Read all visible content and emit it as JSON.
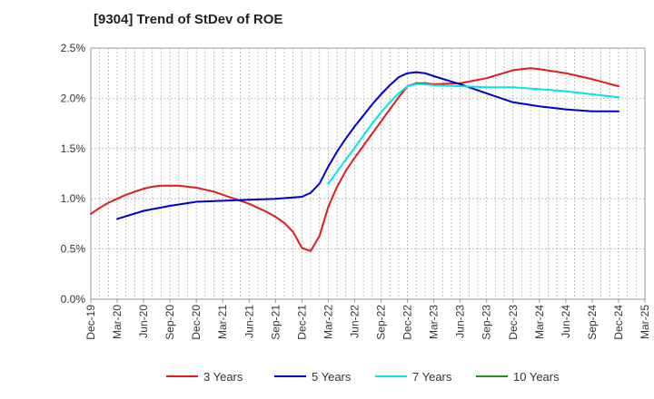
{
  "chart_data": {
    "type": "line",
    "title": "[9304]  Trend of StDev of ROE",
    "xlabel": "",
    "ylabel": "",
    "x_ticks": [
      "Dec-19",
      "Mar-20",
      "Jun-20",
      "Sep-20",
      "Dec-20",
      "Mar-21",
      "Jun-21",
      "Sep-21",
      "Dec-21",
      "Mar-22",
      "Jun-22",
      "Sep-22",
      "Dec-22",
      "Mar-23",
      "Jun-23",
      "Sep-23",
      "Dec-23",
      "Mar-24",
      "Jun-24",
      "Sep-24",
      "Dec-24",
      "Mar-25"
    ],
    "y_ticks": [
      "0.0%",
      "0.5%",
      "1.0%",
      "1.5%",
      "2.0%",
      "2.5%"
    ],
    "ylim": [
      0,
      2.5
    ],
    "y_unit": "%",
    "grid": true,
    "legend_position": "bottom",
    "series": [
      {
        "name": "3 Years",
        "color": "#e31a1c",
        "x": [
          "2019-12",
          "2020-01",
          "2020-02",
          "2020-03",
          "2020-04",
          "2020-05",
          "2020-06",
          "2020-07",
          "2020-08",
          "2020-09",
          "2020-10",
          "2020-11",
          "2020-12",
          "2021-01",
          "2021-02",
          "2021-03",
          "2021-04",
          "2021-05",
          "2021-06",
          "2021-07",
          "2021-08",
          "2021-09",
          "2021-10",
          "2021-11",
          "2021-12",
          "2022-01",
          "2022-02",
          "2022-03",
          "2022-04",
          "2022-05",
          "2022-06",
          "2022-07",
          "2022-08",
          "2022-09",
          "2022-10",
          "2022-11",
          "2022-12",
          "2023-01",
          "2023-02",
          "2023-03",
          "2023-06",
          "2023-09",
          "2023-12",
          "2024-01",
          "2024-02",
          "2024-03",
          "2024-06",
          "2024-09",
          "2024-12"
        ],
        "values": [
          0.85,
          0.91,
          0.96,
          1.0,
          1.04,
          1.07,
          1.1,
          1.12,
          1.13,
          1.13,
          1.13,
          1.12,
          1.11,
          1.09,
          1.07,
          1.04,
          1.01,
          0.98,
          0.95,
          0.91,
          0.87,
          0.82,
          0.76,
          0.67,
          0.51,
          0.48,
          0.63,
          0.92,
          1.12,
          1.28,
          1.41,
          1.53,
          1.65,
          1.77,
          1.89,
          2.01,
          2.12,
          2.15,
          2.15,
          2.14,
          2.15,
          2.2,
          2.28,
          2.29,
          2.3,
          2.29,
          2.25,
          2.19,
          2.12
        ]
      },
      {
        "name": "5 Years",
        "color": "#0000cd",
        "x": [
          "2020-03",
          "2020-06",
          "2020-09",
          "2020-12",
          "2021-03",
          "2021-06",
          "2021-09",
          "2021-12",
          "2022-01",
          "2022-02",
          "2022-03",
          "2022-04",
          "2022-05",
          "2022-06",
          "2022-07",
          "2022-08",
          "2022-09",
          "2022-10",
          "2022-11",
          "2022-12",
          "2023-01",
          "2023-02",
          "2023-03",
          "2023-06",
          "2023-09",
          "2023-12",
          "2024-03",
          "2024-06",
          "2024-09",
          "2024-12"
        ],
        "values": [
          0.8,
          0.88,
          0.93,
          0.97,
          0.98,
          0.99,
          1.0,
          1.02,
          1.06,
          1.15,
          1.32,
          1.47,
          1.6,
          1.72,
          1.83,
          1.94,
          2.04,
          2.13,
          2.21,
          2.25,
          2.26,
          2.25,
          2.22,
          2.14,
          2.05,
          1.96,
          1.92,
          1.89,
          1.87,
          1.87
        ]
      },
      {
        "name": "7 Years",
        "color": "#00e5ee",
        "x": [
          "2022-03",
          "2022-04",
          "2022-05",
          "2022-06",
          "2022-07",
          "2022-08",
          "2022-09",
          "2022-10",
          "2022-11",
          "2022-12",
          "2023-01",
          "2023-02",
          "2023-03",
          "2023-06",
          "2023-09",
          "2023-12",
          "2024-03",
          "2024-06",
          "2024-09",
          "2024-12"
        ],
        "values": [
          1.15,
          1.27,
          1.39,
          1.51,
          1.63,
          1.75,
          1.86,
          1.96,
          2.05,
          2.12,
          2.14,
          2.14,
          2.13,
          2.12,
          2.11,
          2.11,
          2.09,
          2.07,
          2.04,
          2.01
        ]
      },
      {
        "name": "10 Years",
        "color": "#228b22",
        "x": [],
        "values": []
      }
    ]
  }
}
